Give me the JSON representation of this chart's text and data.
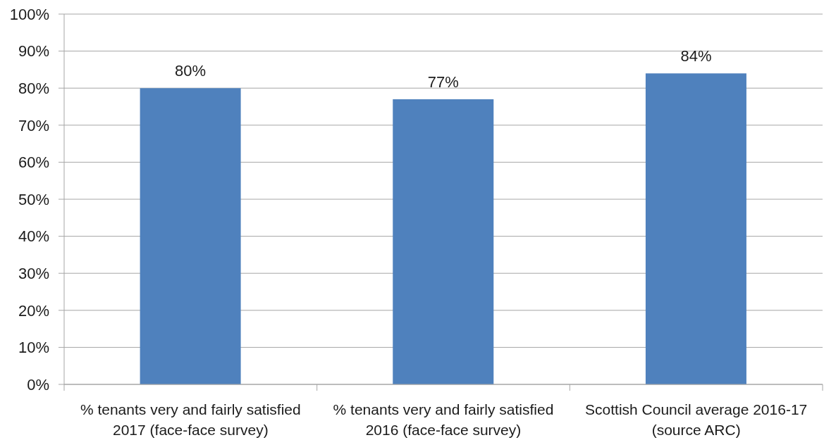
{
  "chart_data": {
    "type": "bar",
    "categories": [
      "% tenants very and fairly satisfied 2017 (face-face survey)",
      "% tenants very and fairly satisfied 2016 (face-face survey)",
      "Scottish Council average 2016-17 (source ARC)"
    ],
    "values": [
      80,
      77,
      84
    ],
    "color": "#4f81bd",
    "value_labels": [
      "80%",
      "77%",
      "84%"
    ],
    "ylim": [
      0,
      100
    ],
    "yticks": [
      {
        "value": 0,
        "label": "0%"
      },
      {
        "value": 10,
        "label": "10%"
      },
      {
        "value": 20,
        "label": "20%"
      },
      {
        "value": 30,
        "label": "30%"
      },
      {
        "value": 40,
        "label": "40%"
      },
      {
        "value": 50,
        "label": "50%"
      },
      {
        "value": 60,
        "label": "60%"
      },
      {
        "value": 70,
        "label": "70%"
      },
      {
        "value": 80,
        "label": "80%"
      },
      {
        "value": 90,
        "label": "90%"
      },
      {
        "value": 100,
        "label": "100%"
      }
    ],
    "grid": "y"
  }
}
